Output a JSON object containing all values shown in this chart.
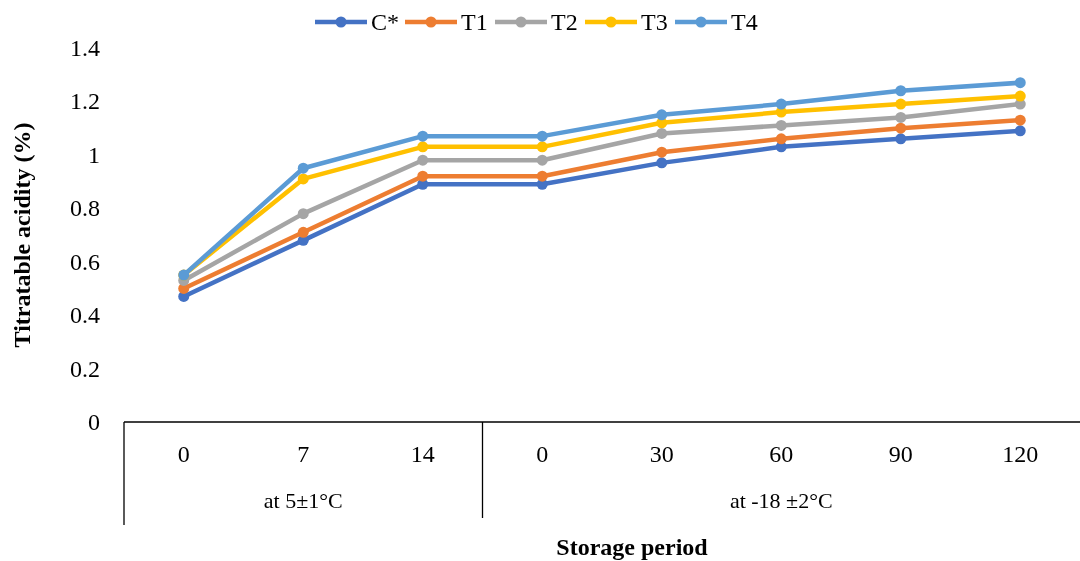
{
  "chart_data": {
    "type": "line",
    "xlabel": "Storage period",
    "ylabel": "Titratable acidity (%)",
    "categories": [
      "0",
      "7",
      "14",
      "0",
      "30",
      "60",
      "90",
      "120"
    ],
    "series": [
      {
        "name": "C*",
        "color": "#4472c4",
        "values": [
          0.47,
          0.68,
          0.89,
          0.89,
          0.97,
          1.03,
          1.06,
          1.09
        ]
      },
      {
        "name": "T1",
        "color": "#ed7d31",
        "values": [
          0.5,
          0.71,
          0.92,
          0.92,
          1.01,
          1.06,
          1.1,
          1.13
        ]
      },
      {
        "name": "T2",
        "color": "#a5a5a5",
        "values": [
          0.53,
          0.78,
          0.98,
          0.98,
          1.08,
          1.11,
          1.14,
          1.19
        ]
      },
      {
        "name": "T3",
        "color": "#ffc000",
        "values": [
          0.55,
          0.91,
          1.03,
          1.03,
          1.12,
          1.16,
          1.19,
          1.22
        ]
      },
      {
        "name": "T4",
        "color": "#5b9bd5",
        "values": [
          0.55,
          0.95,
          1.07,
          1.07,
          1.15,
          1.19,
          1.24,
          1.27
        ]
      }
    ],
    "ylim": [
      0,
      1.4
    ],
    "yticks": [
      0,
      0.2,
      0.4,
      0.6,
      0.8,
      1,
      1.2,
      1.4
    ],
    "annotations": [
      "at 5±1°C",
      "at -18 ±2°C"
    ],
    "legend": "top",
    "marker": "circle",
    "line_style": "solid",
    "grid": false
  }
}
